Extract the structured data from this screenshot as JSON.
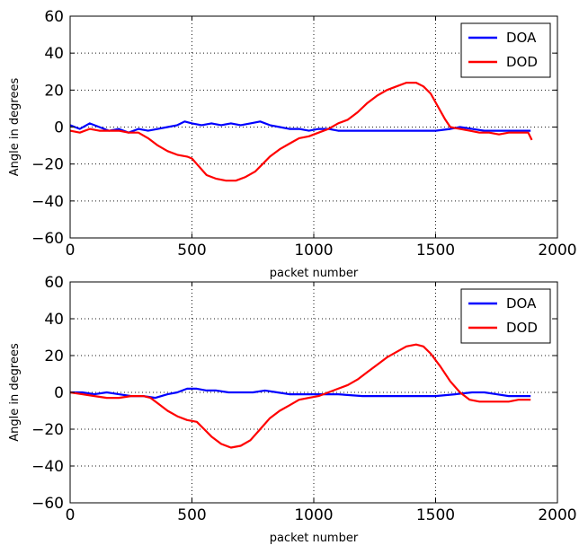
{
  "chart_data": [
    {
      "type": "line",
      "xlabel": "packet number",
      "ylabel": "Angle in degrees",
      "xlim": [
        0,
        2000
      ],
      "ylim": [
        -60,
        60
      ],
      "xticks": [
        "0",
        "500",
        "1000",
        "1500",
        "2000"
      ],
      "yticks": [
        "60",
        "40",
        "20",
        "0",
        "−20",
        "−40",
        "−60"
      ],
      "grid": true,
      "legend": "top-right",
      "series": [
        {
          "name": "DOA",
          "color": "#0000ff",
          "points": [
            [
              0,
              1
            ],
            [
              40,
              -1
            ],
            [
              80,
              2
            ],
            [
              120,
              0
            ],
            [
              160,
              -2
            ],
            [
              200,
              -1
            ],
            [
              240,
              -3
            ],
            [
              280,
              -1
            ],
            [
              320,
              -2
            ],
            [
              360,
              -1
            ],
            [
              400,
              0
            ],
            [
              440,
              1
            ],
            [
              470,
              3
            ],
            [
              500,
              2
            ],
            [
              540,
              1
            ],
            [
              580,
              2
            ],
            [
              620,
              1
            ],
            [
              660,
              2
            ],
            [
              700,
              1
            ],
            [
              740,
              2
            ],
            [
              780,
              3
            ],
            [
              820,
              1
            ],
            [
              860,
              0
            ],
            [
              900,
              -1
            ],
            [
              940,
              -1
            ],
            [
              980,
              -2
            ],
            [
              1020,
              -1
            ],
            [
              1060,
              -1
            ],
            [
              1100,
              -2
            ],
            [
              1140,
              -2
            ],
            [
              1200,
              -2
            ],
            [
              1260,
              -2
            ],
            [
              1320,
              -2
            ],
            [
              1380,
              -2
            ],
            [
              1440,
              -2
            ],
            [
              1500,
              -2
            ],
            [
              1560,
              -1
            ],
            [
              1600,
              0
            ],
            [
              1650,
              -1
            ],
            [
              1700,
              -2
            ],
            [
              1750,
              -2
            ],
            [
              1800,
              -2
            ],
            [
              1850,
              -2
            ],
            [
              1890,
              -2
            ]
          ]
        },
        {
          "name": "DOD",
          "color": "#ff0000",
          "points": [
            [
              0,
              -2
            ],
            [
              40,
              -3
            ],
            [
              80,
              -1
            ],
            [
              120,
              -2
            ],
            [
              160,
              -2
            ],
            [
              200,
              -2
            ],
            [
              240,
              -3
            ],
            [
              280,
              -3
            ],
            [
              320,
              -6
            ],
            [
              360,
              -10
            ],
            [
              400,
              -13
            ],
            [
              440,
              -15
            ],
            [
              480,
              -16
            ],
            [
              500,
              -17
            ],
            [
              520,
              -20
            ],
            [
              560,
              -26
            ],
            [
              600,
              -28
            ],
            [
              640,
              -29
            ],
            [
              680,
              -29
            ],
            [
              720,
              -27
            ],
            [
              760,
              -24
            ],
            [
              790,
              -20
            ],
            [
              820,
              -16
            ],
            [
              860,
              -12
            ],
            [
              900,
              -9
            ],
            [
              940,
              -6
            ],
            [
              980,
              -5
            ],
            [
              1020,
              -3
            ],
            [
              1060,
              -1
            ],
            [
              1100,
              2
            ],
            [
              1140,
              4
            ],
            [
              1180,
              8
            ],
            [
              1220,
              13
            ],
            [
              1260,
              17
            ],
            [
              1300,
              20
            ],
            [
              1340,
              22
            ],
            [
              1380,
              24
            ],
            [
              1420,
              24
            ],
            [
              1450,
              22
            ],
            [
              1480,
              18
            ],
            [
              1510,
              11
            ],
            [
              1540,
              4
            ],
            [
              1560,
              0
            ],
            [
              1600,
              -1
            ],
            [
              1640,
              -2
            ],
            [
              1680,
              -3
            ],
            [
              1720,
              -3
            ],
            [
              1760,
              -4
            ],
            [
              1800,
              -3
            ],
            [
              1840,
              -3
            ],
            [
              1880,
              -3
            ],
            [
              1895,
              -7
            ]
          ]
        }
      ]
    },
    {
      "type": "line",
      "xlabel": "packet number",
      "ylabel": "Angle in degrees",
      "xlim": [
        0,
        2000
      ],
      "ylim": [
        -60,
        60
      ],
      "xticks": [
        "0",
        "500",
        "1000",
        "1500",
        "2000"
      ],
      "yticks": [
        "60",
        "40",
        "20",
        "0",
        "−20",
        "−40",
        "−60"
      ],
      "grid": true,
      "legend": "top-right",
      "series": [
        {
          "name": "DOA",
          "color": "#0000ff",
          "points": [
            [
              0,
              0
            ],
            [
              50,
              0
            ],
            [
              100,
              -1
            ],
            [
              150,
              0
            ],
            [
              200,
              -1
            ],
            [
              250,
              -2
            ],
            [
              300,
              -2
            ],
            [
              350,
              -3
            ],
            [
              400,
              -1
            ],
            [
              440,
              0
            ],
            [
              480,
              2
            ],
            [
              520,
              2
            ],
            [
              560,
              1
            ],
            [
              600,
              1
            ],
            [
              650,
              0
            ],
            [
              700,
              0
            ],
            [
              750,
              0
            ],
            [
              800,
              1
            ],
            [
              850,
              0
            ],
            [
              900,
              -1
            ],
            [
              950,
              -1
            ],
            [
              1000,
              -1
            ],
            [
              1050,
              -1
            ],
            [
              1100,
              -1
            ],
            [
              1200,
              -2
            ],
            [
              1300,
              -2
            ],
            [
              1400,
              -2
            ],
            [
              1500,
              -2
            ],
            [
              1580,
              -1
            ],
            [
              1650,
              0
            ],
            [
              1700,
              0
            ],
            [
              1750,
              -1
            ],
            [
              1800,
              -2
            ],
            [
              1850,
              -2
            ],
            [
              1890,
              -2
            ]
          ]
        },
        {
          "name": "DOD",
          "color": "#ff0000",
          "points": [
            [
              0,
              0
            ],
            [
              50,
              -1
            ],
            [
              100,
              -2
            ],
            [
              150,
              -3
            ],
            [
              200,
              -3
            ],
            [
              250,
              -2
            ],
            [
              300,
              -2
            ],
            [
              330,
              -3
            ],
            [
              360,
              -6
            ],
            [
              400,
              -10
            ],
            [
              440,
              -13
            ],
            [
              480,
              -15
            ],
            [
              520,
              -16
            ],
            [
              550,
              -20
            ],
            [
              580,
              -24
            ],
            [
              620,
              -28
            ],
            [
              660,
              -30
            ],
            [
              700,
              -29
            ],
            [
              740,
              -26
            ],
            [
              780,
              -20
            ],
            [
              820,
              -14
            ],
            [
              860,
              -10
            ],
            [
              900,
              -7
            ],
            [
              940,
              -4
            ],
            [
              980,
              -3
            ],
            [
              1020,
              -2
            ],
            [
              1060,
              0
            ],
            [
              1100,
              2
            ],
            [
              1140,
              4
            ],
            [
              1180,
              7
            ],
            [
              1220,
              11
            ],
            [
              1260,
              15
            ],
            [
              1300,
              19
            ],
            [
              1340,
              22
            ],
            [
              1380,
              25
            ],
            [
              1420,
              26
            ],
            [
              1450,
              25
            ],
            [
              1480,
              21
            ],
            [
              1520,
              14
            ],
            [
              1560,
              6
            ],
            [
              1600,
              0
            ],
            [
              1640,
              -4
            ],
            [
              1680,
              -5
            ],
            [
              1720,
              -5
            ],
            [
              1760,
              -5
            ],
            [
              1800,
              -5
            ],
            [
              1840,
              -4
            ],
            [
              1890,
              -4
            ]
          ]
        }
      ]
    }
  ]
}
